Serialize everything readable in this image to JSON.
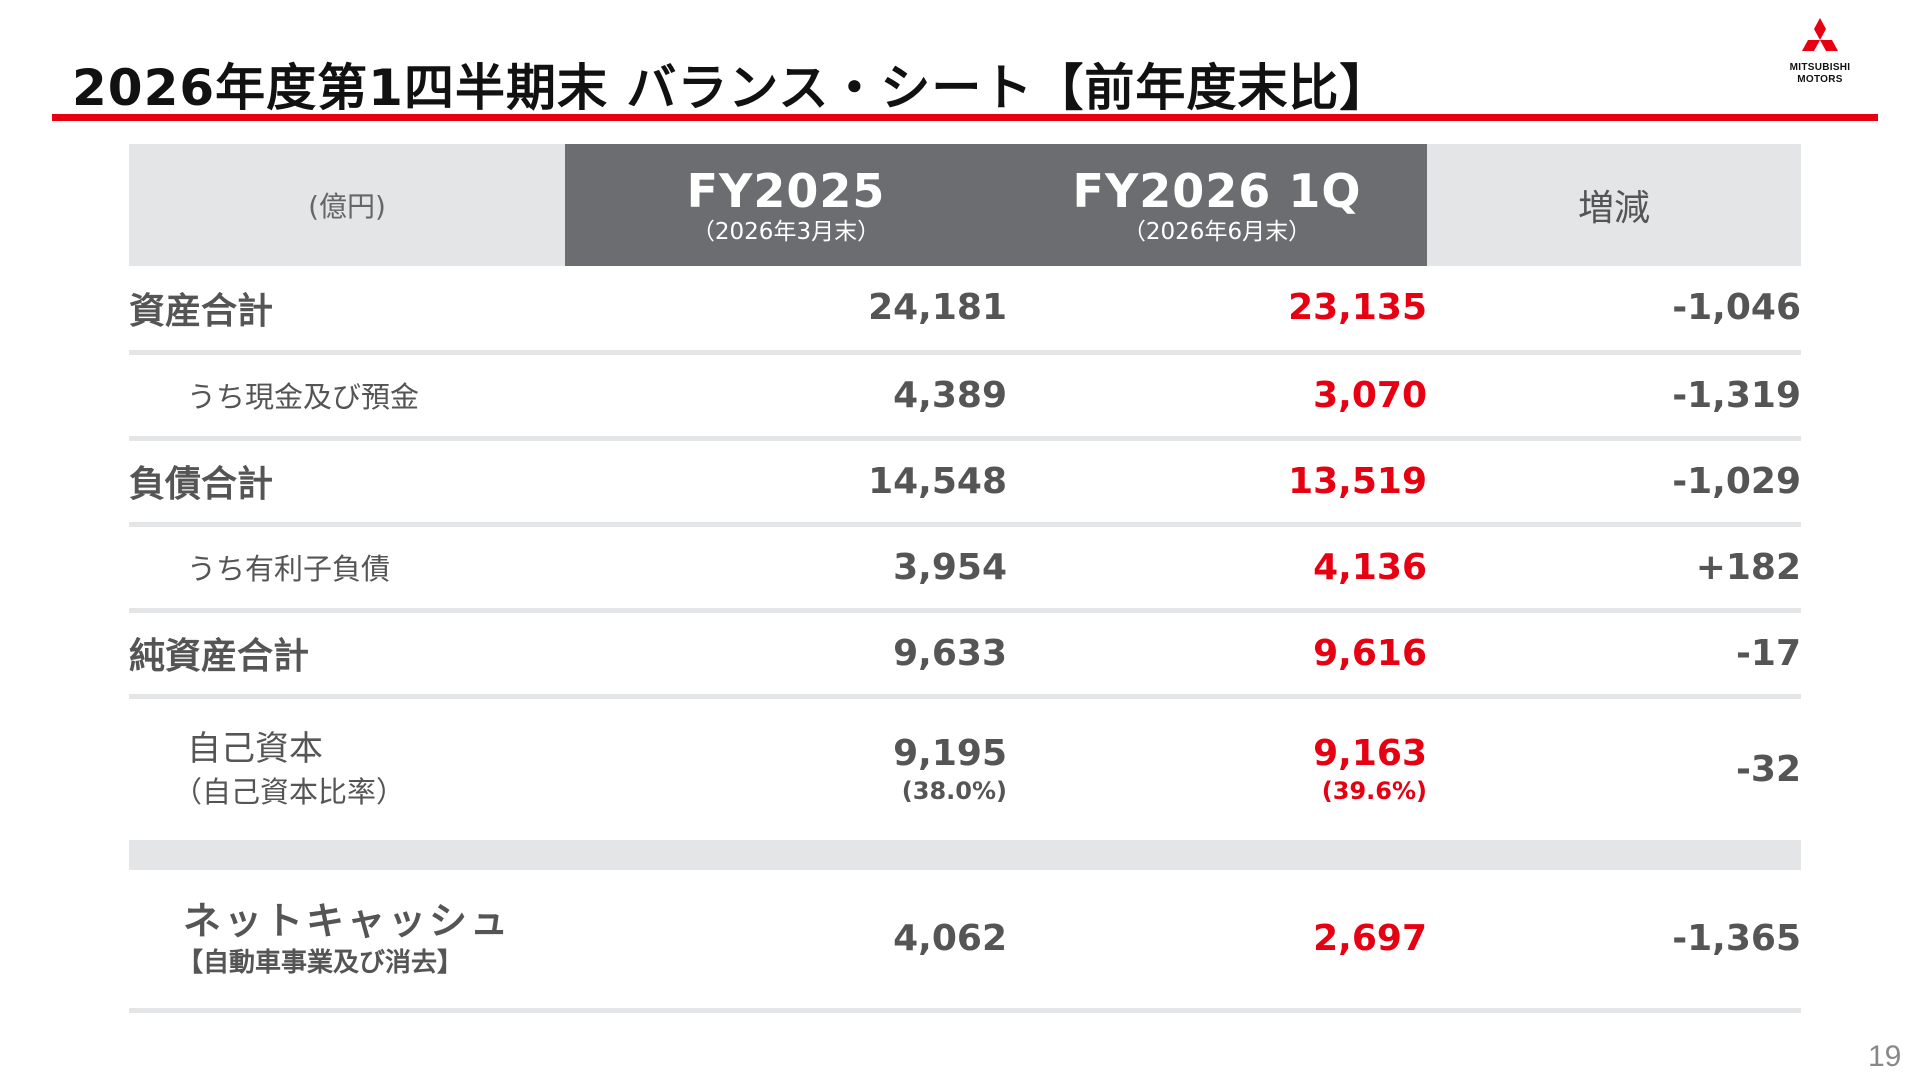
{
  "page": {
    "title": "2026年度第1四半期末 バランス・シート【前年度末比】",
    "page_number": "19",
    "accent_color": "#e60012"
  },
  "logo": {
    "line1": "MITSUBISHI",
    "line2": "MOTORS",
    "icon": "three-diamonds-icon"
  },
  "table": {
    "header": {
      "unit": "(億円)",
      "col1": {
        "title": "FY2025",
        "date": "（2026年3月末）"
      },
      "col2": {
        "title": "FY2026 1Q",
        "date": "（2026年6月末）"
      },
      "col3": "増減"
    },
    "rows": [
      {
        "label": "資産合計",
        "fy2025": "24,181",
        "fy2026": "23,135",
        "diff": "-1,046"
      },
      {
        "label": "うち現金及び預金",
        "fy2025": "4,389",
        "fy2026": "3,070",
        "diff": "-1,319"
      },
      {
        "label": "負債合計",
        "fy2025": "14,548",
        "fy2026": "13,519",
        "diff": "-1,029"
      },
      {
        "label": "うち有利子負債",
        "fy2025": "3,954",
        "fy2026": "4,136",
        "diff": "+182"
      },
      {
        "label": "純資産合計",
        "fy2025": "9,633",
        "fy2026": "9,616",
        "diff": "-17"
      }
    ],
    "equity": {
      "label": "自己資本",
      "sublabel": "（自己資本比率）",
      "fy2025": "9,195",
      "fy2025_ratio": "(38.0%)",
      "fy2026": "9,163",
      "fy2026_ratio": "(39.6%)",
      "diff": "-32"
    },
    "net_cash": {
      "label": "ネットキャッシュ",
      "sublabel": "【自動車事業及び消去】",
      "fy2025": "4,062",
      "fy2026": "2,697",
      "diff": "-1,365"
    }
  }
}
